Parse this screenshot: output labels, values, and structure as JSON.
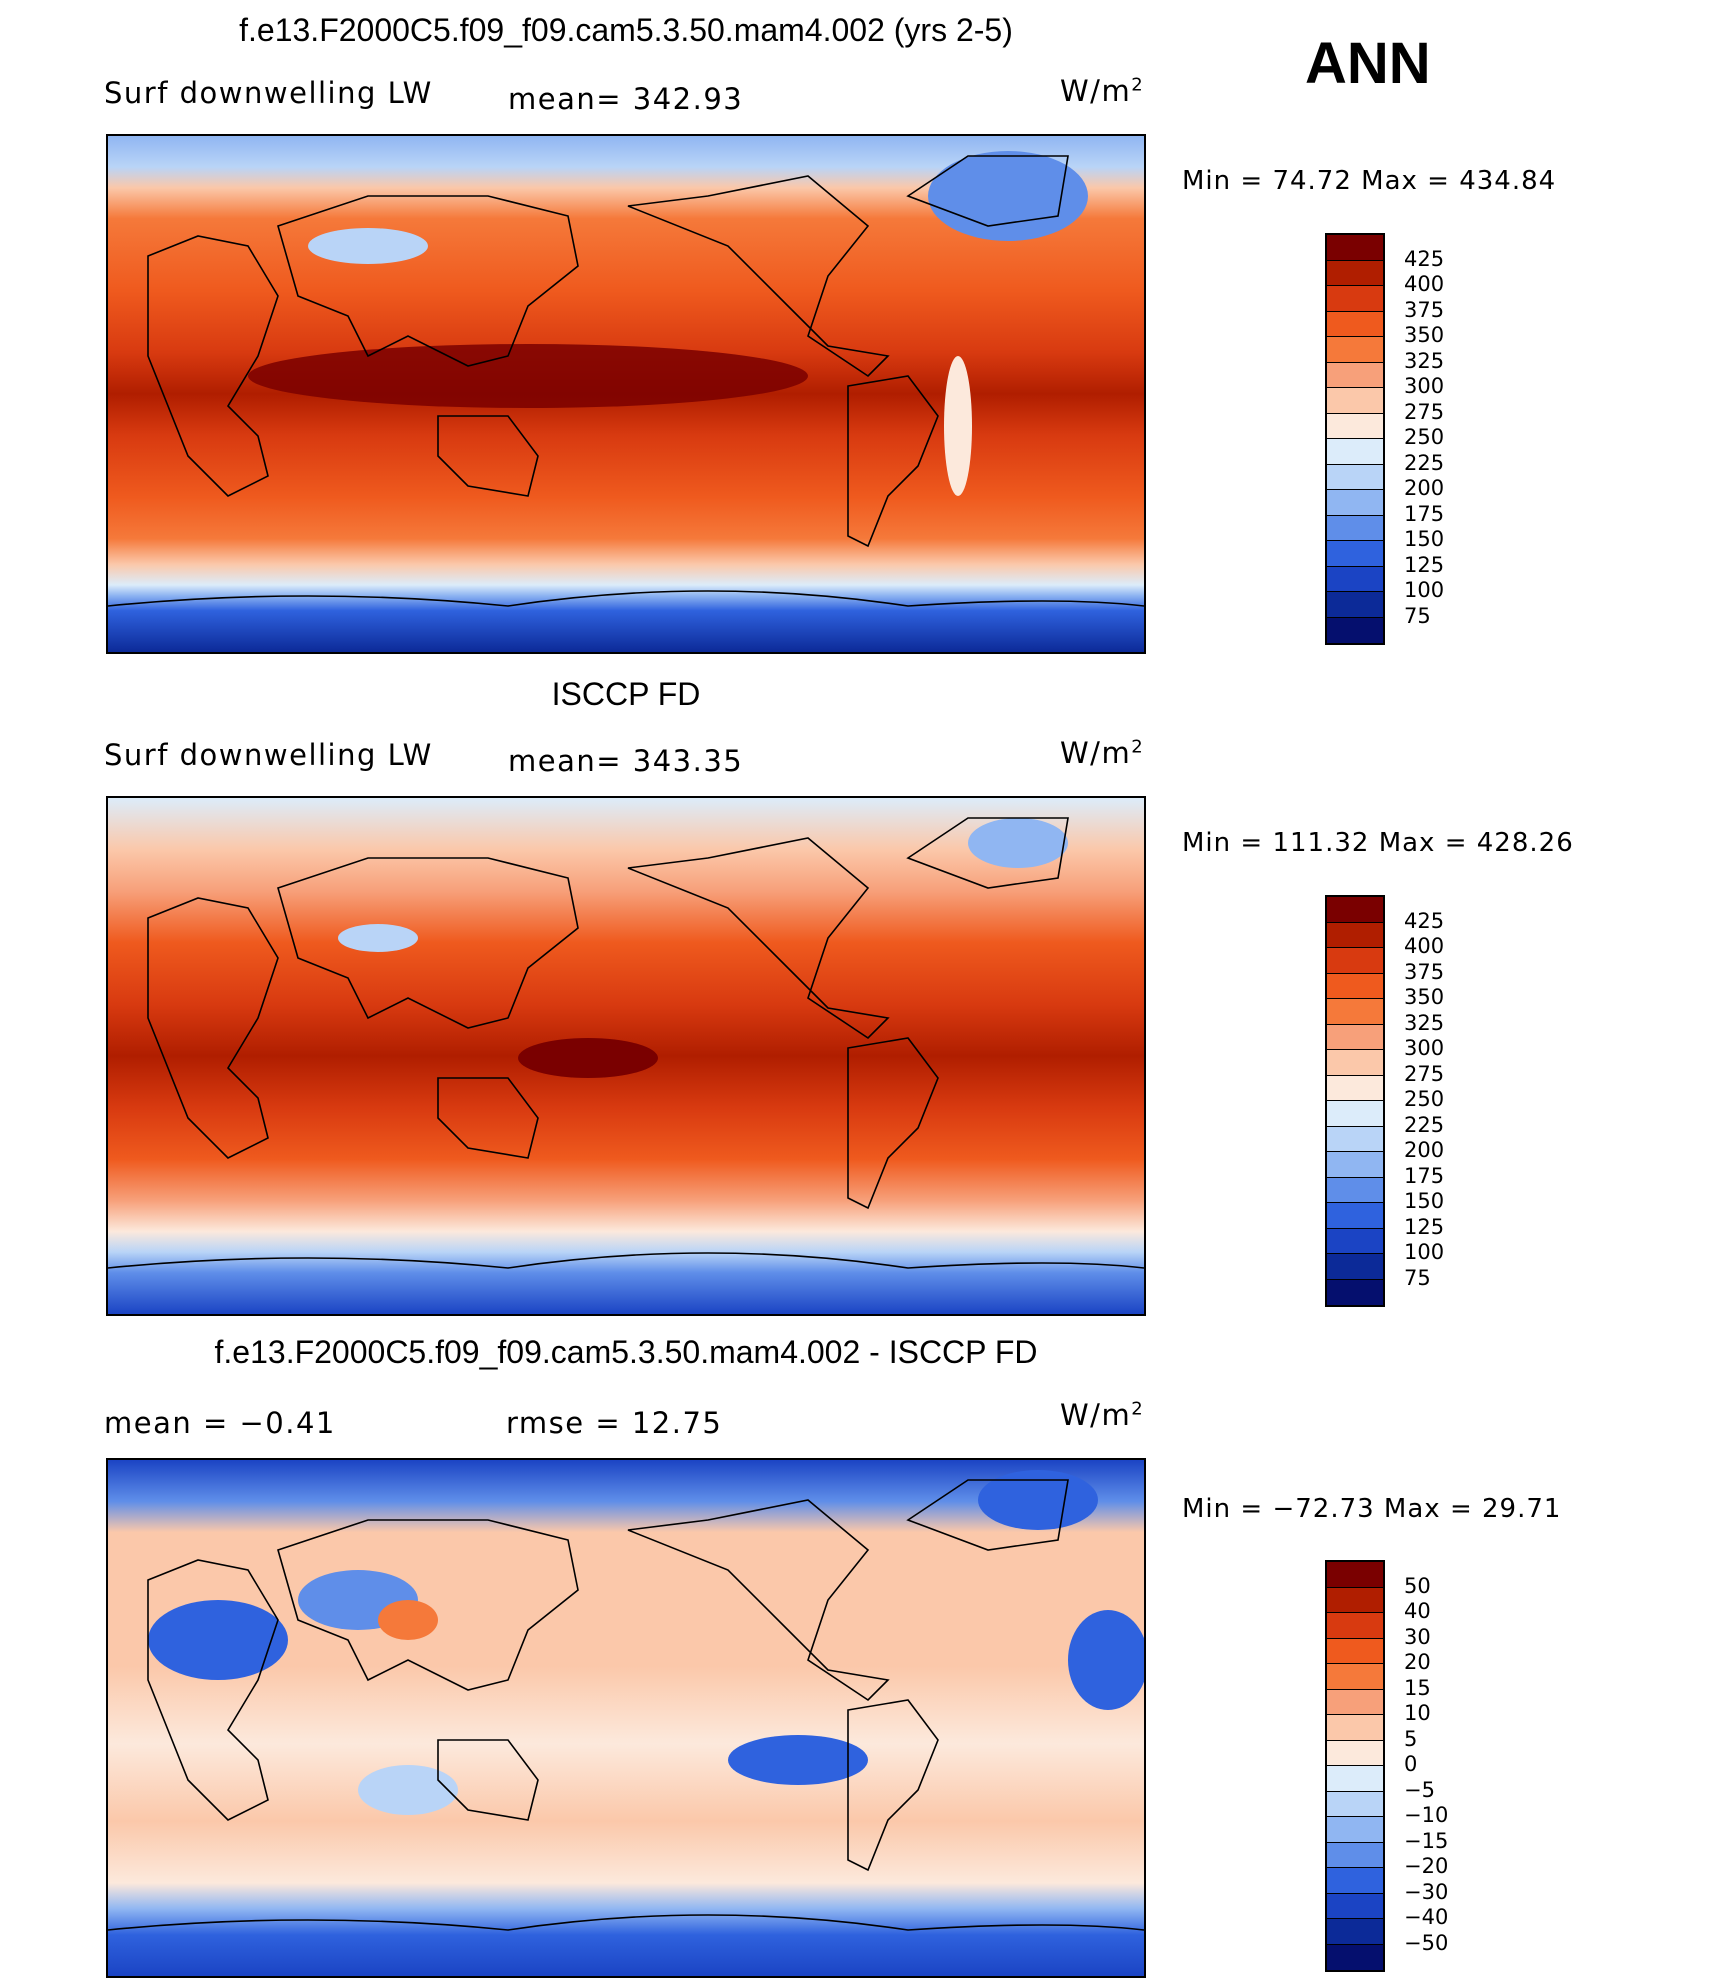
{
  "season": "ANN",
  "panels": [
    {
      "title": "f.e13.F2000C5.f09_f09.cam5.3.50.mam4.002 (yrs 2-5)",
      "left_label": "Surf  downwelling  LW",
      "center_label": "mean=  342.93",
      "units": "W/m",
      "units_exp": "2",
      "minmax": "Min  =    74.72  Max  =  434.84",
      "colorbar": {
        "labels": [
          "425",
          "400",
          "375",
          "350",
          "325",
          "300",
          "275",
          "250",
          "225",
          "200",
          "175",
          "150",
          "125",
          "100",
          "75"
        ],
        "colors": [
          "#7a0000",
          "#b01e00",
          "#d83a10",
          "#ef5a1e",
          "#f5793a",
          "#f7a07a",
          "#fbc8aa",
          "#fce9dc",
          "#dcecfa",
          "#b9d4f7",
          "#90b6f2",
          "#5f8ee9",
          "#2f62de",
          "#1b44c4",
          "#0c2a98",
          "#050f6e"
        ]
      }
    },
    {
      "title": "ISCCP FD",
      "left_label": "Surf  downwelling  LW",
      "center_label": "mean=  343.35",
      "units": "W/m",
      "units_exp": "2",
      "minmax": "Min  =  111.32  Max  =  428.26",
      "colorbar": {
        "labels": [
          "425",
          "400",
          "375",
          "350",
          "325",
          "300",
          "275",
          "250",
          "225",
          "200",
          "175",
          "150",
          "125",
          "100",
          "75"
        ],
        "colors": [
          "#7a0000",
          "#b01e00",
          "#d83a10",
          "#ef5a1e",
          "#f5793a",
          "#f7a07a",
          "#fbc8aa",
          "#fce9dc",
          "#dcecfa",
          "#b9d4f7",
          "#90b6f2",
          "#5f8ee9",
          "#2f62de",
          "#1b44c4",
          "#0c2a98",
          "#050f6e"
        ]
      }
    },
    {
      "title": "f.e13.F2000C5.f09_f09.cam5.3.50.mam4.002 - ISCCP FD",
      "left_label": "mean  =    −0.41",
      "center_label": "rmse  =    12.75",
      "units": "W/m",
      "units_exp": "2",
      "minmax": "Min  =  −72.73  Max  =    29.71",
      "colorbar": {
        "labels": [
          "50",
          "40",
          "30",
          "20",
          "15",
          "10",
          "5",
          "0",
          "−5",
          "−10",
          "−15",
          "−20",
          "−30",
          "−40",
          "−50"
        ],
        "colors": [
          "#7a0000",
          "#b01e00",
          "#d83a10",
          "#ef5a1e",
          "#f5793a",
          "#f7a07a",
          "#fbc8aa",
          "#fce9dc",
          "#dcecfa",
          "#b9d4f7",
          "#90b6f2",
          "#5f8ee9",
          "#2f62de",
          "#1b44c4",
          "#0c2a98",
          "#050f6e"
        ]
      }
    }
  ]
}
